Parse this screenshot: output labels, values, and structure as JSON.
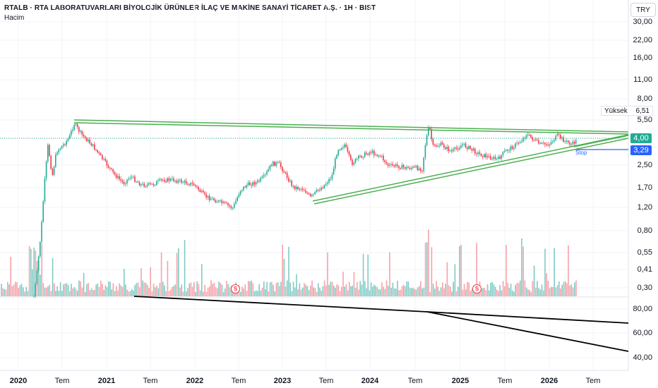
{
  "header": {
    "title": "RTALB · RTA LABORATUVARLARI BİYOLOJİK ÜRÜNLER İLAÇ VE MAKİNE SANAYİ TİCARET A.Ş. · 1H · BIST",
    "indicator": "Hacim",
    "currency": "TRY"
  },
  "price_axis": [
    "30,00",
    "22,00",
    "16,00",
    "11,00",
    "8,00",
    "5,50",
    "4,00",
    "2,50",
    "1,70",
    "1,20",
    "0,80",
    "0,55",
    "0,41",
    "0,30"
  ],
  "lower_axis": [
    "80,00",
    "60,00",
    "40,00"
  ],
  "time_axis": [
    {
      "label": "2020",
      "year": true
    },
    {
      "label": "Tem",
      "year": false
    },
    {
      "label": "2021",
      "year": true
    },
    {
      "label": "Tem",
      "year": false
    },
    {
      "label": "2022",
      "year": true
    },
    {
      "label": "Tem",
      "year": false
    },
    {
      "label": "2023",
      "year": true
    },
    {
      "label": "Tem",
      "year": false
    },
    {
      "label": "2024",
      "year": true
    },
    {
      "label": "Tem",
      "year": false
    },
    {
      "label": "2025",
      "year": true
    },
    {
      "label": "Tem",
      "year": false
    },
    {
      "label": "2026",
      "year": true
    },
    {
      "label": "Tem",
      "year": false
    }
  ],
  "markers": {
    "high_label": "Yüksek",
    "high_value": "6,51",
    "last_price": "4,00",
    "stop_price": "3,29",
    "stop_label": "Stop",
    "dividend_icon": "S"
  },
  "colors": {
    "up": "#22ab94",
    "down": "#f23645",
    "trendline": "#4caf50",
    "stop_line": "#2962ff",
    "vol_up": "#80cbc4",
    "vol_down": "#f7a1a8"
  }
}
